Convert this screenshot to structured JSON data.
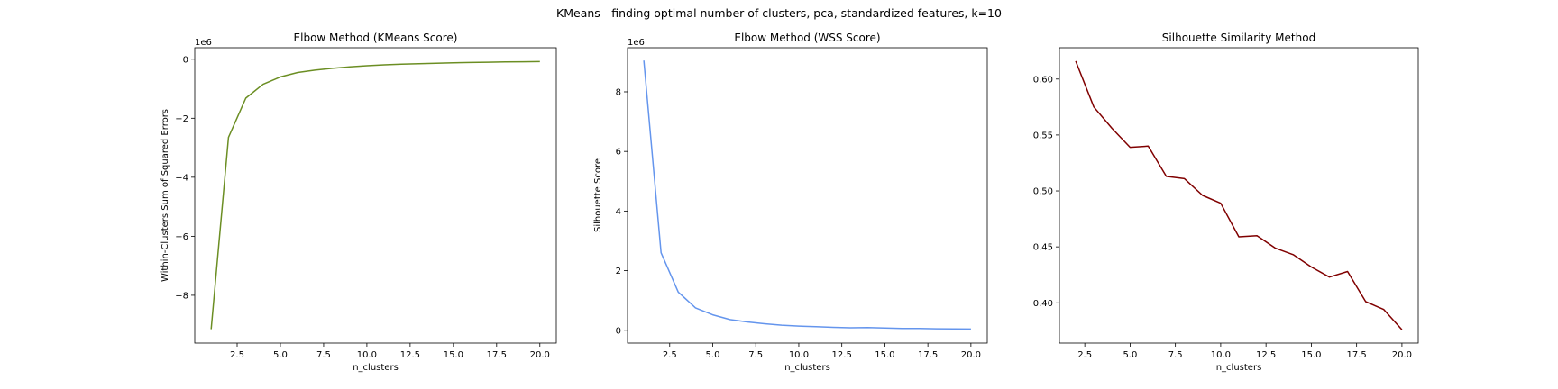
{
  "figure": {
    "suptitle": "KMeans - finding optimal number of clusters, pca, standardized features, k=10"
  },
  "chart_data": [
    {
      "type": "line",
      "title": "Elbow Method (KMeans Score)",
      "xlabel": "n_clusters",
      "ylabel": "Within-Clusters Sum of Squared Errors",
      "offset_label": "1e6",
      "color": "#6b8e23",
      "xlim": [
        0.05,
        20.95
      ],
      "ylim": [
        -9.62,
        0.39
      ],
      "xticks": [
        2.5,
        5.0,
        7.5,
        10.0,
        12.5,
        15.0,
        17.5,
        20.0
      ],
      "xtick_labels": [
        "2.5",
        "5.0",
        "7.5",
        "10.0",
        "12.5",
        "15.0",
        "17.5",
        "20.0"
      ],
      "yticks": [
        -8,
        -6,
        -4,
        -2,
        0
      ],
      "ytick_labels": [
        "−8",
        "−6",
        "−4",
        "−2",
        "0"
      ],
      "x": [
        1,
        2,
        3,
        4,
        5,
        6,
        7,
        8,
        9,
        10,
        11,
        12,
        13,
        14,
        15,
        16,
        17,
        18,
        19,
        20
      ],
      "y": [
        -9.15,
        -2.65,
        -1.32,
        -0.85,
        -0.6,
        -0.45,
        -0.37,
        -0.31,
        -0.26,
        -0.22,
        -0.19,
        -0.17,
        -0.15,
        -0.135,
        -0.12,
        -0.11,
        -0.1,
        -0.09,
        -0.085,
        -0.08
      ]
    },
    {
      "type": "line",
      "title": "Elbow Method (WSS Score)",
      "xlabel": "n_clusters",
      "ylabel": "Silhouette Score",
      "offset_label": "1e6",
      "color": "#6495ed",
      "xlim": [
        0.05,
        20.95
      ],
      "ylim": [
        -0.43,
        9.48
      ],
      "xticks": [
        2.5,
        5.0,
        7.5,
        10.0,
        12.5,
        15.0,
        17.5,
        20.0
      ],
      "xtick_labels": [
        "2.5",
        "5.0",
        "7.5",
        "10.0",
        "12.5",
        "15.0",
        "17.5",
        "20.0"
      ],
      "yticks": [
        0,
        2,
        4,
        6,
        8
      ],
      "ytick_labels": [
        "0",
        "2",
        "4",
        "6",
        "8"
      ],
      "x": [
        1,
        2,
        3,
        4,
        5,
        6,
        7,
        8,
        9,
        10,
        11,
        12,
        13,
        14,
        15,
        16,
        17,
        18,
        19,
        20
      ],
      "y": [
        9.05,
        2.6,
        1.28,
        0.75,
        0.52,
        0.36,
        0.28,
        0.22,
        0.17,
        0.14,
        0.12,
        0.1,
        0.085,
        0.09,
        0.075,
        0.06,
        0.06,
        0.05,
        0.045,
        0.04
      ]
    },
    {
      "type": "line",
      "title": "Silhouette Similarity Method",
      "xlabel": "n_clusters",
      "ylabel": "",
      "color": "#800000",
      "xlim": [
        1.1,
        20.9
      ],
      "ylim": [
        0.364,
        0.628
      ],
      "xticks": [
        2.5,
        5.0,
        7.5,
        10.0,
        12.5,
        15.0,
        17.5,
        20.0
      ],
      "xtick_labels": [
        "2.5",
        "5.0",
        "7.5",
        "10.0",
        "12.5",
        "15.0",
        "17.5",
        "20.0"
      ],
      "yticks": [
        0.4,
        0.45,
        0.5,
        0.55,
        0.6
      ],
      "ytick_labels": [
        "0.40",
        "0.45",
        "0.50",
        "0.55",
        "0.60"
      ],
      "x": [
        2,
        3,
        4,
        5,
        6,
        7,
        8,
        9,
        10,
        11,
        12,
        13,
        14,
        15,
        16,
        17,
        18,
        19,
        20
      ],
      "y": [
        0.616,
        0.575,
        0.556,
        0.539,
        0.54,
        0.513,
        0.511,
        0.496,
        0.489,
        0.459,
        0.46,
        0.449,
        0.443,
        0.432,
        0.423,
        0.428,
        0.401,
        0.394,
        0.376
      ]
    }
  ]
}
